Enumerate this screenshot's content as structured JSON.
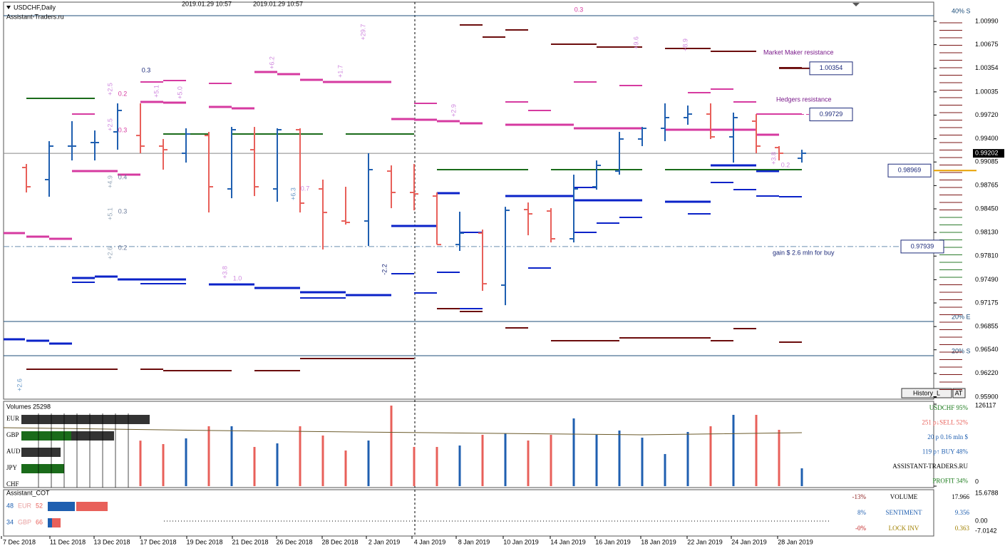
{
  "header": {
    "symbol": "USDCHF,Daily",
    "source": "Assistant-Traders.ru",
    "times": [
      "2019.01.29 10:57",
      "2019.01.29 10:57"
    ]
  },
  "price_axis": {
    "ticks": [
      {
        "value": 1.0099,
        "label": "1.00990"
      },
      {
        "value": 1.00675,
        "label": "1.00675"
      },
      {
        "value": 1.00354,
        "label": "1.00354"
      },
      {
        "value": 1.00035,
        "label": "1.00035"
      },
      {
        "value": 0.9972,
        "label": "0.99720"
      },
      {
        "value": 0.994,
        "label": "0.99400"
      },
      {
        "value": 0.99085,
        "label": "0.99085"
      },
      {
        "value": 0.98765,
        "label": "0.98765"
      },
      {
        "value": 0.9845,
        "label": "0.98450"
      },
      {
        "value": 0.9813,
        "label": "0.98130"
      },
      {
        "value": 0.9781,
        "label": "0.97810"
      },
      {
        "value": 0.9749,
        "label": "0.97490"
      },
      {
        "value": 0.97175,
        "label": "0.97175"
      },
      0.96855,
      {
        "value": 0.9654,
        "label": "0.96540"
      },
      {
        "value": 0.9622,
        "label": "0.96220"
      },
      {
        "value": 0.959,
        "label": "0.95900"
      }
    ],
    "current": {
      "value": 0.99202,
      "label": "0.99202"
    }
  },
  "candles": [
    {
      "open": 0.9901,
      "high": 0.99058,
      "low": 0.98672,
      "close": 0.98749
    },
    {
      "open": 0.98846,
      "high": 0.99367,
      "low": 0.98614,
      "close": 0.993
    },
    {
      "open": 0.993,
      "high": 0.99638,
      "low": 0.99106,
      "close": 0.993
    },
    {
      "open": 0.99348,
      "high": 0.99512,
      "low": 0.99106,
      "close": 0.99348
    },
    {
      "open": 0.99493,
      "high": 0.99879,
      "low": 0.99251,
      "close": 0.99783
    },
    {
      "open": 0.99444,
      "high": 0.99879,
      "low": 0.99203,
      "close": 0.993
    },
    {
      "open": 0.993,
      "high": 0.99396,
      "low": 0.98981,
      "close": 0.99251
    },
    {
      "open": 0.99203,
      "high": 0.99541,
      "low": 0.99077,
      "close": 0.99464
    },
    {
      "open": 0.99444,
      "high": 0.99493,
      "low": 0.98401,
      "close": 0.98749
    },
    {
      "open": 0.9872,
      "high": 0.9956,
      "low": 0.98594,
      "close": 0.99522
    },
    {
      "open": 0.99251,
      "high": 0.9956,
      "low": 0.98623,
      "close": 0.98749
    },
    {
      "open": 0.9872,
      "high": 0.99541,
      "low": 0.98546,
      "close": 0.99522
    },
    {
      "open": 0.99522,
      "high": 0.99541,
      "low": 0.98401,
      "close": 0.98527
    },
    {
      "open": 0.9872,
      "high": 0.98846,
      "low": 0.97899,
      "close": 0.98401
    },
    {
      "open": 0.98285,
      "high": 0.98749,
      "low": 0.98237,
      "close": 0.98266
    },
    {
      "open": 0.98285,
      "high": 0.99203,
      "low": 0.97947,
      "close": 0.98981
    },
    {
      "open": 0.98961,
      "high": 0.99039,
      "low": 0.98459,
      "close": 0.98672
    },
    {
      "open": 0.98672,
      "high": 0.99058,
      "low": 0.9843,
      "close": 0.98652
    },
    {
      "open": 0.98623,
      "high": 0.98672,
      "low": 0.97966,
      "close": 0.97966
    },
    {
      "open": 0.97966,
      "high": 0.98411,
      "low": 0.9788,
      "close": 0.98121
    },
    {
      "open": 0.98121,
      "high": 0.98169,
      "low": 0.97339,
      "close": 0.97435
    },
    {
      "open": 0.97416,
      "high": 0.98478,
      "low": 0.97145,
      "close": 0.9843
    },
    {
      "open": 0.9844,
      "high": 0.98536,
      "low": 0.98092,
      "close": 0.98382
    },
    {
      "open": 0.9842,
      "high": 0.98459,
      "low": 0.97995,
      "close": 0.98044
    },
    {
      "open": 0.98044,
      "high": 0.98913,
      "low": 0.97995,
      "close": 0.9872
    },
    {
      "open": 0.98749,
      "high": 0.99106,
      "low": 0.9871,
      "close": 0.99039
    },
    {
      "open": 0.98961,
      "high": 0.99493,
      "low": 0.98913,
      "close": 0.99396
    },
    {
      "open": 0.99396,
      "high": 0.9956,
      "low": 0.993,
      "close": 0.99541
    },
    {
      "open": 0.99541,
      "high": 0.99879,
      "low": 0.99367,
      "close": 0.99686
    },
    {
      "open": 0.99686,
      "high": 0.9985,
      "low": 0.99589,
      "close": 0.99734
    },
    {
      "open": 0.99734,
      "high": 0.99879,
      "low": 0.99396,
      "close": 0.99425
    },
    {
      "open": 0.99425,
      "high": 0.99754,
      "low": 0.99077,
      "close": 0.99686
    },
    {
      "open": 0.99638,
      "high": 0.99734,
      "low": 0.99203,
      "close": 0.993
    },
    {
      "open": 0.9928,
      "high": 0.993,
      "low": 0.99106,
      "close": 0.99203
    },
    {
      "open": 0.99135,
      "high": 0.99251,
      "low": 0.99077,
      "close": 0.99203
    }
  ],
  "levels": {
    "market_maker": {
      "label": "Market Maker resistance",
      "price": {
        "value": 1.00354,
        "label": "1.00354"
      }
    },
    "hedgers": {
      "label": "Hedgers resistance",
      "price": {
        "value": 0.99729,
        "label": "0.99729"
      }
    },
    "support": {
      "value": 0.98969,
      "label": "0.98969"
    },
    "gain": {
      "label": "gain $ 2.6 mln for buy",
      "price": {
        "value": 0.97939,
        "label": "0.97939"
      }
    }
  },
  "zone_labels": [
    "40% S",
    "20% E",
    "20% S"
  ],
  "annotations": [
    "0.3",
    "+29.7",
    "+6.2",
    "+1.7",
    "+5.0",
    "+5.1",
    "+2.5",
    "+2.5",
    "+4.9",
    "+5.1",
    "+2.6",
    "+6.3",
    "+3.8",
    "+2.9",
    "+9.6",
    "+8.9",
    "+3.8",
    "+2.6",
    "-2.2",
    "0.3",
    "0.2",
    "0.3",
    "0.4",
    "0.3",
    "0.2",
    "0.7",
    "1.0",
    "0.2"
  ],
  "buttons": [
    "History_L",
    "AT"
  ],
  "volumes": {
    "title": "Volumes 25298",
    "ticks": [
      0,
      126117
    ],
    "values": [
      null,
      null,
      null,
      null,
      null,
      70000,
      64700,
      73500,
      92100,
      92100,
      60300,
      65800,
      92100,
      77900,
      54800,
      70200,
      123900,
      60300,
      60300,
      62500,
      79000,
      81200,
      70200,
      79000,
      104200,
      79000,
      85500,
      74600,
      49400,
      83300,
      92100,
      109700,
      109700,
      86600,
      27400
    ]
  },
  "currencies": [
    "EUR",
    "GBP",
    "AUD",
    "JPY",
    "CHF"
  ],
  "stats": [
    "USDCHF 95%",
    "251 p↓SELL 52%",
    "20 p   0.16 mln $",
    "119 p↑ BUY 48%",
    "ASSISTANT-TRADERS.RU",
    "PROFIT 34%"
  ],
  "cot": {
    "title": "Assistant_COT",
    "rows": [
      [
        "48",
        "EUR",
        "52"
      ],
      [
        "34",
        "GBP",
        "66"
      ]
    ],
    "axis": [
      "15.6788",
      "0.00",
      "-7.0142"
    ],
    "table": [
      [
        "-13%",
        "VOLUME",
        "17.966"
      ],
      [
        "8%",
        "SENTIMENT",
        "9.356"
      ],
      [
        "-0%",
        "LOCK INV",
        "0.363"
      ]
    ]
  },
  "dates": [
    "7 Dec 2018",
    "11 Dec 2018",
    "13 Dec 2018",
    "17 Dec 2018",
    "19 Dec 2018",
    "21 Dec 2018",
    "26 Dec 2018",
    "28 Dec 2018",
    "2 Jan 2019",
    "4 Jan 2019",
    "8 Jan 2019",
    "10 Jan 2019",
    "14 Jan 2019",
    "16 Jan 2019",
    "18 Jan 2019",
    "22 Jan 2019",
    "24 Jan 2019",
    "28 Jan 2019"
  ]
}
